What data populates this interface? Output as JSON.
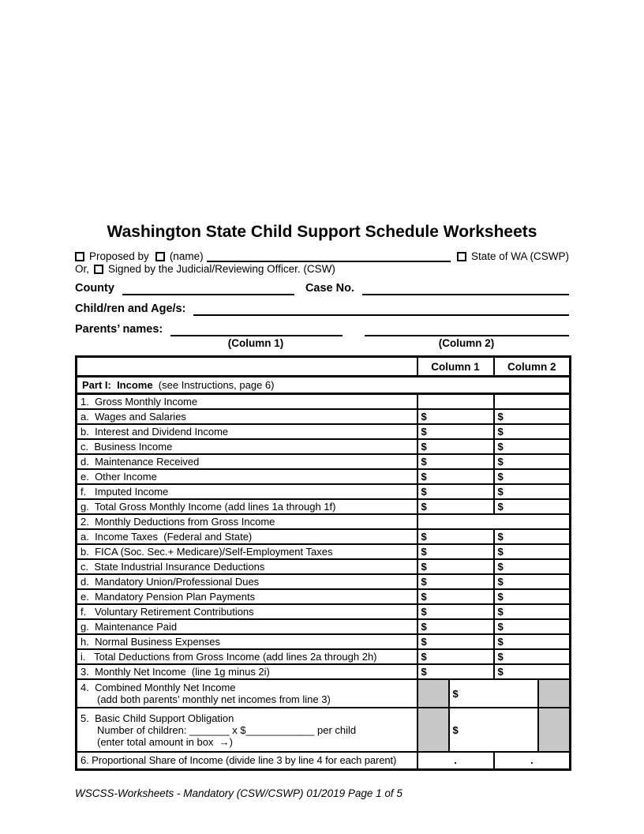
{
  "page": {
    "title": "Washington State Child Support Schedule Worksheets",
    "footer": "WSCSS-Worksheets - Mandatory (CSW/CSWP) 01/2019 Page 1 of 5"
  },
  "header": {
    "proposed_by_label": "Proposed by",
    "name_label": "(name)",
    "state_of_wa_label": "State of WA (CSWP)",
    "or_label": "Or,",
    "signed_by_label": "Signed by the Judicial/Reviewing Officer. (CSW)",
    "county_label": "County",
    "case_no_label": "Case No.",
    "children_label": "Child/ren and Age/s:",
    "parents_label": "Parents’ names:",
    "column1_caption": "(Column 1)",
    "column2_caption": "(Column 2)"
  },
  "table": {
    "col1_header": "Column 1",
    "col2_header": "Column 2",
    "dollar_sign": "$",
    "dot": ".",
    "shaded_color": "#c7c7c7",
    "rows": [
      {
        "kind": "part",
        "id": "part1",
        "bold": "Part I:  Income",
        "normal": " (see Instructions, page 6)"
      },
      {
        "kind": "group2",
        "id": "1",
        "label": "1.  Gross Monthly Income"
      },
      {
        "kind": "money",
        "id": "1a",
        "indent": true,
        "label": "a.  Wages and Salaries"
      },
      {
        "kind": "money",
        "id": "1b",
        "indent": true,
        "label": "b.  Interest and Dividend Income"
      },
      {
        "kind": "money",
        "id": "1c",
        "indent": true,
        "label": "c.  Business Income"
      },
      {
        "kind": "money",
        "id": "1d",
        "indent": true,
        "label": "d.  Maintenance Received"
      },
      {
        "kind": "money",
        "id": "1e",
        "indent": true,
        "label": "e.  Other Income"
      },
      {
        "kind": "money",
        "id": "1f",
        "indent": true,
        "label": "f.   Imputed Income"
      },
      {
        "kind": "money",
        "id": "1g",
        "indent": true,
        "label": "g.  Total Gross Monthly Income (add lines 1a through 1f)"
      },
      {
        "kind": "group1",
        "id": "2",
        "label": "2.  Monthly Deductions from Gross Income"
      },
      {
        "kind": "money",
        "id": "2a",
        "indent": true,
        "label": "a.  Income Taxes  (Federal and State)"
      },
      {
        "kind": "money",
        "id": "2b",
        "indent": true,
        "label": "b.  FICA (Soc. Sec.+ Medicare)/Self-Employment Taxes"
      },
      {
        "kind": "money",
        "id": "2c",
        "indent": true,
        "label": "c.  State Industrial Insurance Deductions"
      },
      {
        "kind": "money",
        "id": "2d",
        "indent": true,
        "label": "d.  Mandatory Union/Professional Dues"
      },
      {
        "kind": "money",
        "id": "2e",
        "indent": true,
        "label": "e.  Mandatory Pension Plan Payments"
      },
      {
        "kind": "money",
        "id": "2f",
        "indent": true,
        "label": "f.   Voluntary Retirement Contributions"
      },
      {
        "kind": "money",
        "id": "2g",
        "indent": true,
        "label": "g.  Maintenance Paid"
      },
      {
        "kind": "money",
        "id": "2h",
        "indent": true,
        "label": "h.  Normal Business Expenses"
      },
      {
        "kind": "money",
        "id": "2i",
        "indent": true,
        "label": "i.   Total Deductions from Gross Income (add lines 2a through 2h)"
      },
      {
        "kind": "money",
        "id": "3",
        "indent": false,
        "label": "3.  Monthly Net Income  (line 1g minus 2i)"
      },
      {
        "kind": "combined",
        "id": "4",
        "height": 36,
        "lines": [
          "4.  Combined Monthly Net Income",
          "(add both parents’ monthly net incomes from line 3)"
        ]
      },
      {
        "kind": "combined",
        "id": "5",
        "height": 56,
        "lines": [
          "5.  Basic Child Support Obligation",
          "Number of children: _______ x $____________ per child",
          "(enter total amount in box  →)"
        ]
      },
      {
        "kind": "dots",
        "id": "6",
        "label": "6. Proportional Share of Income (divide line 3 by line 4 for each parent)"
      }
    ]
  }
}
